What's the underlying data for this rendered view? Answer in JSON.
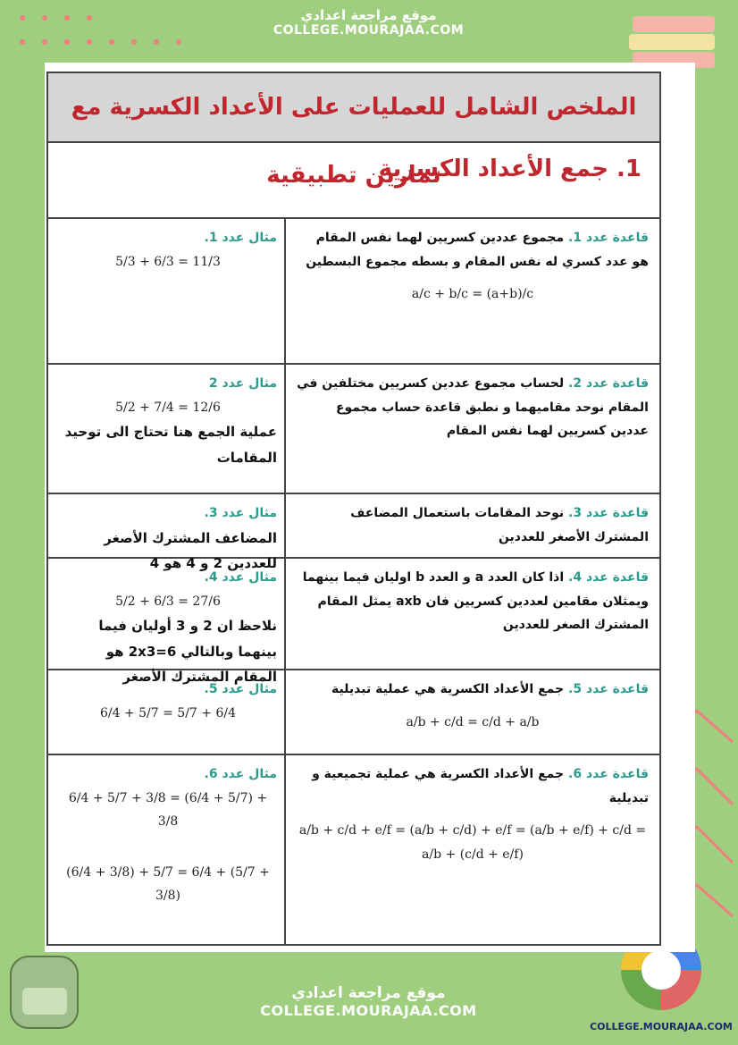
{
  "header": {
    "site_name": "موقع مراجعة اعدادي",
    "site_url": "COLLEGE.MOURAJAA.COM"
  },
  "title": "الملخص الشامل للعمليات على الأعداد الكسرية مع تمارين تطبيقية",
  "section": "1. جمع الأعداد الكسرية",
  "rows": [
    {
      "rule_label": "قاعدة عدد 1.",
      "rule_text": "مجموع عددين كسريين لهما نفس المقام هو عدد كسري له نفس المقام و بسطه مجموع البسطين",
      "rule_formula": "a/c + b/c = (a+b)/c",
      "example_label": "مثال عدد 1.",
      "example_formula": "5/3 + 6/3 = 11/3"
    },
    {
      "rule_label": "قاعدة عدد 2.",
      "rule_text": "لحساب مجموع عددين كسريين مختلفين في المقام نوحد مقاميهما و نطبق قاعدة حساب مجموع عددين كسريين لهما نفس المقام",
      "example_label": "مثال عدد 2",
      "example_formula": "5/2 + 7/4 = 12/6",
      "example_note": "عملية الجمع هنا تحتاج الى توحيد المقامات"
    },
    {
      "rule_label": "قاعدة عدد 3.",
      "rule_text": "نوحد المقامات باستعمال المضاعف المشترك الأصغر للعددين",
      "example_label": "مثال عدد 3.",
      "example_note": "المضاعف المشترك الأصغر للعددين 2 و 4 هو 4"
    },
    {
      "rule_label": "قاعدة عدد 4.",
      "rule_text": "اذا كان العدد a و العدد b اوليان فيما بينهما ويمثلان مقامين لعددين كسريين فان axb يمثل المقام المشترك الصغر للعددين",
      "example_label": "مثال عدد 4.",
      "example_formula": "5/2 + 6/3 = 27/6",
      "example_note": "نلاحظ ان 2 و 3 أوليان فيما بينهما وبالتالي 2x3=6 هو المقام المشترك الأصغر"
    },
    {
      "rule_label": "قاعدة عدد 5.",
      "rule_text": "جمع الأعداد الكسرية هي عملية تبديلية",
      "rule_formula": "a/b + c/d = c/d + a/b",
      "example_label": "مثال عدد 5.",
      "example_formula": "6/4 + 5/7 = 5/7 + 6/4"
    },
    {
      "rule_label": "قاعدة عدد 6.",
      "rule_text": "جمع الأعداد الكسرية هي عملية تجميعية و تبديلية",
      "rule_formula": "a/b + c/d + e/f = (a/b + c/d) + e/f = (a/b + e/f) + c/d = a/b + (c/d + e/f)",
      "example_label": "مثال عدد 6.",
      "example_formula": "6/4 + 5/7 + 3/8 = (6/4 + 5/7) + 3/8",
      "example_formula_2": "(6/4 + 3/8) + 5/7 = 6/4 + (5/7 + 3/8)"
    }
  ],
  "footer": {
    "site_name": "موقع مراجعة اعدادي",
    "site_url": "COLLEGE.MOURAJAA.COM",
    "logo_text": "COLLEGE.MOURAJAA.COM"
  }
}
